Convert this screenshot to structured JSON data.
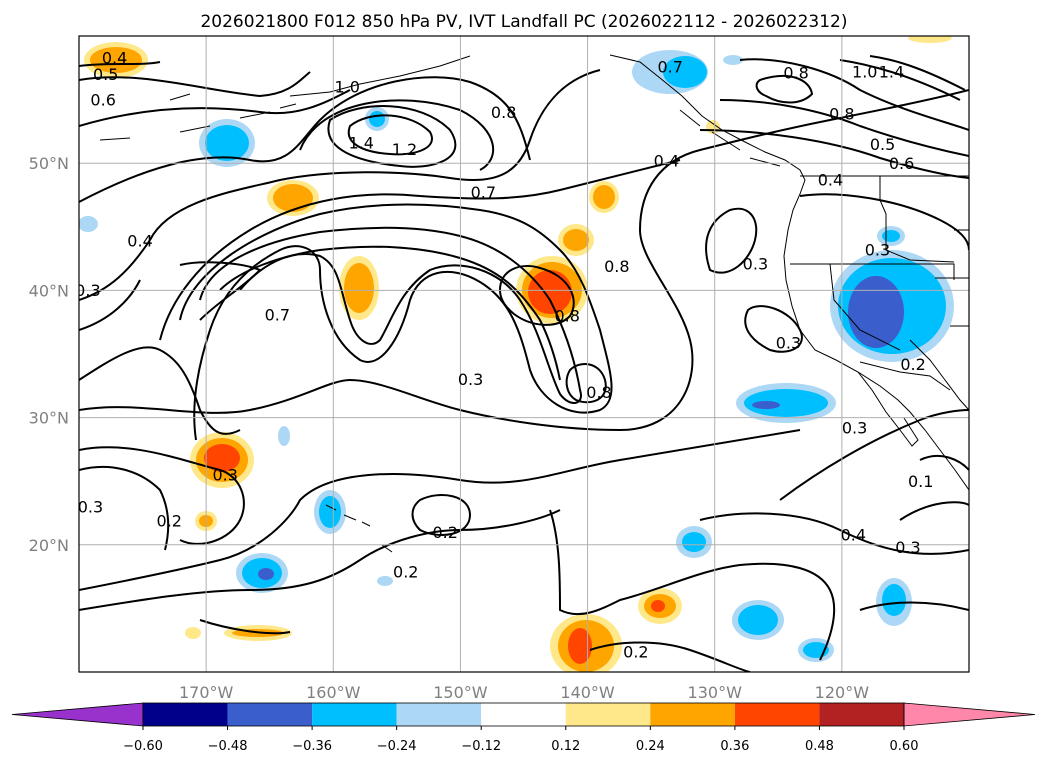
{
  "chart_data": {
    "type": "heatmap",
    "title": "2026021800 F012 850 hPa PV, IVT Landfall PC (2026022112 - 2026022312)",
    "x_axis": {
      "range_deg_lon": [
        -180,
        -110
      ],
      "ticks": [
        {
          "lon": -170,
          "label": "170°W"
        },
        {
          "lon": -160,
          "label": "160°W"
        },
        {
          "lon": -150,
          "label": "150°W"
        },
        {
          "lon": -140,
          "label": "140°W"
        },
        {
          "lon": -130,
          "label": "130°W"
        },
        {
          "lon": -120,
          "label": "120°W"
        }
      ]
    },
    "y_axis": {
      "range_deg_lat": [
        10,
        60
      ],
      "ticks": [
        {
          "lat": 20,
          "label": "20°N"
        },
        {
          "lat": 30,
          "label": "30°N"
        },
        {
          "lat": 40,
          "label": "40°N"
        },
        {
          "lat": 50,
          "label": "50°N"
        }
      ]
    },
    "grid": true,
    "colorbar": {
      "placement": "bottom",
      "extend": "both",
      "boundaries": [
        -0.6,
        -0.48,
        -0.36,
        -0.24,
        -0.12,
        0.12,
        0.24,
        0.36,
        0.48,
        0.6
      ],
      "tick_labels": [
        "−0.60",
        "−0.48",
        "−0.36",
        "−0.24",
        "−0.12",
        "0.12",
        "0.24",
        "0.36",
        "0.48",
        "0.60"
      ],
      "colors": [
        "#9932cc",
        "#00008b",
        "#3a5fcd",
        "#00bfff",
        "#add8f5",
        "#ffffff",
        "#ffe88a",
        "#ffa500",
        "#ff4500",
        "#b22222",
        "#ff88aa"
      ]
    },
    "contour_labels": [
      {
        "text": "0.4",
        "lon": -177.2,
        "lat": 58.2
      },
      {
        "text": "0.5",
        "lon": -177.9,
        "lat": 56.9
      },
      {
        "text": "0.6",
        "lon": -178.1,
        "lat": 54.9
      },
      {
        "text": "1.0",
        "lon": -158.9,
        "lat": 55.9
      },
      {
        "text": "1.4",
        "lon": -157.8,
        "lat": 51.5
      },
      {
        "text": "1.2",
        "lon": -154.4,
        "lat": 51.0
      },
      {
        "text": "0.8",
        "lon": -146.6,
        "lat": 53.9
      },
      {
        "text": "0.7",
        "lon": -133.5,
        "lat": 57.5
      },
      {
        "text": "0.4",
        "lon": -133.8,
        "lat": 50.1
      },
      {
        "text": "0.7",
        "lon": -148.2,
        "lat": 47.6
      },
      {
        "text": "0.4",
        "lon": -175.2,
        "lat": 43.8
      },
      {
        "text": "0.3",
        "lon": -179.3,
        "lat": 39.9
      },
      {
        "text": "0.7",
        "lon": -164.4,
        "lat": 38.0
      },
      {
        "text": "0.8",
        "lon": -137.7,
        "lat": 41.8
      },
      {
        "text": "0.8",
        "lon": -141.6,
        "lat": 37.9
      },
      {
        "text": "0.3",
        "lon": -149.2,
        "lat": 32.9
      },
      {
        "text": "0.8",
        "lon": -139.1,
        "lat": 31.9
      },
      {
        "text": "0.3",
        "lon": -126.8,
        "lat": 42.0
      },
      {
        "text": "0.3",
        "lon": -124.2,
        "lat": 35.8
      },
      {
        "text": "0.8",
        "lon": -123.6,
        "lat": 57.0
      },
      {
        "text": "0.8",
        "lon": -120.0,
        "lat": 53.8
      },
      {
        "text": "1.0",
        "lon": -118.2,
        "lat": 57.1
      },
      {
        "text": "1.4",
        "lon": -116.1,
        "lat": 57.1
      },
      {
        "text": "0.5",
        "lon": -116.8,
        "lat": 51.4
      },
      {
        "text": "0.4",
        "lon": -120.9,
        "lat": 48.6
      },
      {
        "text": "0.6",
        "lon": -115.3,
        "lat": 49.9
      },
      {
        "text": "0.3",
        "lon": -117.2,
        "lat": 43.1
      },
      {
        "text": "0.2",
        "lon": -114.4,
        "lat": 34.1
      },
      {
        "text": "0.3",
        "lon": -119.0,
        "lat": 29.1
      },
      {
        "text": "0.1",
        "lon": -113.8,
        "lat": 24.9
      },
      {
        "text": "0.4",
        "lon": -119.1,
        "lat": 20.7
      },
      {
        "text": "0.3",
        "lon": -114.8,
        "lat": 19.7
      },
      {
        "text": "0.3",
        "lon": -168.5,
        "lat": 25.4
      },
      {
        "text": "0.3",
        "lon": -179.1,
        "lat": 22.9
      },
      {
        "text": "0.2",
        "lon": -172.9,
        "lat": 21.8
      },
      {
        "text": "0.2",
        "lon": -151.2,
        "lat": 20.9
      },
      {
        "text": "0.2",
        "lon": -154.3,
        "lat": 17.8
      },
      {
        "text": "0.2",
        "lon": -136.2,
        "lat": 11.5
      }
    ]
  }
}
